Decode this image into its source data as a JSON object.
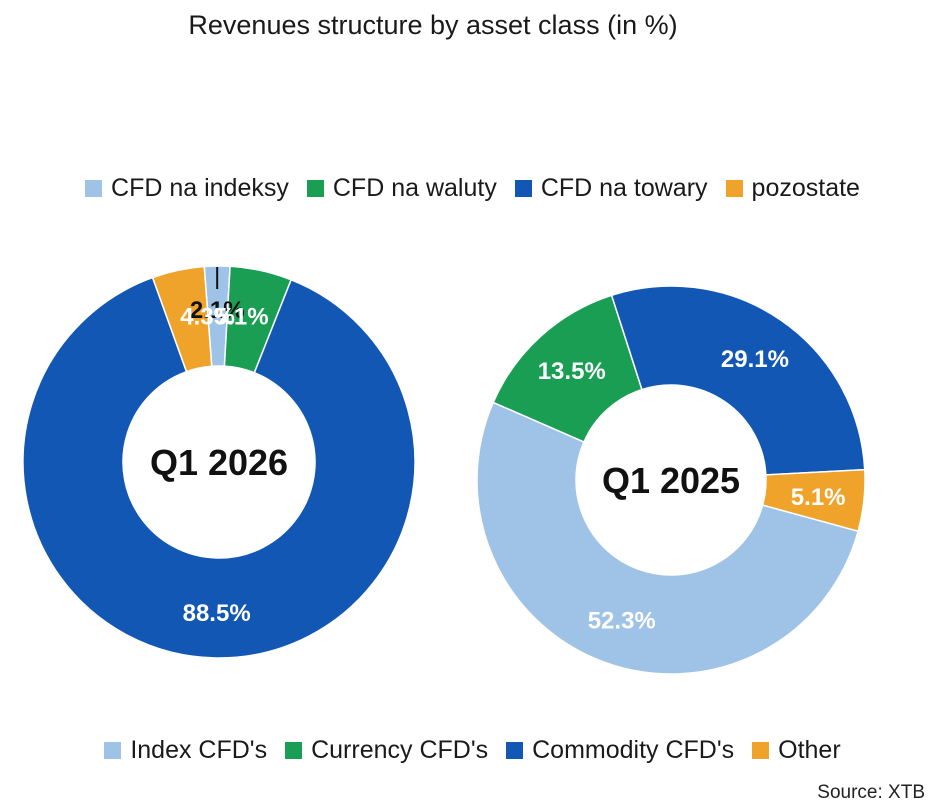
{
  "title": "Revenues structure by asset class (in %)",
  "legend_pl": [
    "CFD na indeksy",
    "CFD na waluty",
    "CFD na towary",
    "pozostate"
  ],
  "legend_en": [
    "Index CFD's",
    "Currency CFD's",
    "Commodity CFD's",
    "Other"
  ],
  "colors": [
    "#9fc3e6",
    "#1a9e53",
    "#1257b4",
    "#f0a32a"
  ],
  "source": "Source: XTB",
  "chart_data": [
    {
      "type": "pie",
      "center_label": "Q1 2026",
      "categories": [
        "Index CFD's",
        "Currency CFD's",
        "Commodity CFD's",
        "Other"
      ],
      "values": [
        2.1,
        5.1,
        88.5,
        4.3
      ],
      "labels": [
        "2.1%",
        "5.1%",
        "88.5%",
        "4.3%"
      ]
    },
    {
      "type": "pie",
      "center_label": "Q1 2025",
      "categories": [
        "Index CFD's",
        "Currency CFD's",
        "Commodity CFD's",
        "Other"
      ],
      "values": [
        52.3,
        13.5,
        29.1,
        5.1
      ],
      "labels": [
        "52.3%",
        "13.5%",
        "29.1%",
        "5.1%"
      ]
    }
  ]
}
